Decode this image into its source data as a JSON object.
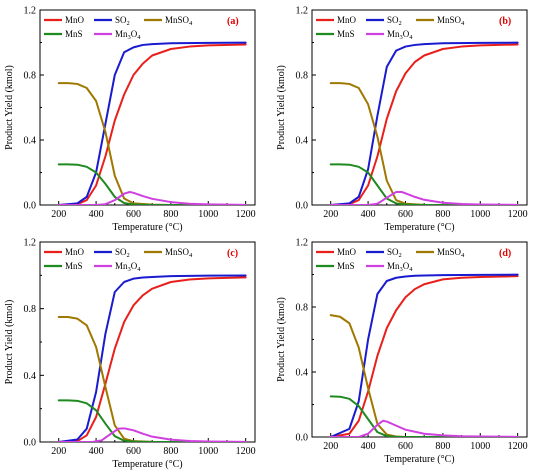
{
  "colors": {
    "MnO": "#e8201c",
    "SO2": "#1a1acf",
    "MnSO4": "#a07800",
    "MnS": "#1f8a1f",
    "Mn3O4": "#d040e0"
  },
  "chart_data": [
    {
      "type": "line",
      "panel_label": "(a)",
      "xlabel": "Temperature (°C)",
      "ylabel": "Product Yield (kmol)",
      "xlim": [
        100,
        1250
      ],
      "ylim": [
        0,
        1.2
      ],
      "xticks": [
        200,
        400,
        600,
        800,
        1000,
        1200
      ],
      "yticks": [
        0.0,
        0.4,
        0.8,
        1.2
      ],
      "legend": [
        {
          "key": "MnO",
          "label_main": "MnO",
          "label_sub": ""
        },
        {
          "key": "SO2",
          "label_main": "SO",
          "label_sub": "2"
        },
        {
          "key": "MnSO4",
          "label_main": "MnSO",
          "label_sub": "4"
        },
        {
          "key": "MnS",
          "label_main": "MnS",
          "label_sub": ""
        },
        {
          "key": "Mn3O4",
          "label_main": "Mn",
          "label_sub": "3",
          "label_tail": "O",
          "label_sub2": "4"
        }
      ],
      "series": [
        {
          "key": "MnO",
          "x": [
            200,
            300,
            350,
            400,
            450,
            500,
            550,
            600,
            650,
            700,
            800,
            900,
            1000,
            1200
          ],
          "y": [
            0,
            0.005,
            0.03,
            0.12,
            0.3,
            0.52,
            0.68,
            0.8,
            0.87,
            0.92,
            0.96,
            0.975,
            0.982,
            0.988
          ]
        },
        {
          "key": "SO2",
          "x": [
            200,
            300,
            350,
            400,
            450,
            500,
            550,
            600,
            650,
            700,
            800,
            1000,
            1200
          ],
          "y": [
            0,
            0.01,
            0.05,
            0.2,
            0.5,
            0.8,
            0.94,
            0.97,
            0.985,
            0.99,
            0.995,
            0.998,
            0.999
          ]
        },
        {
          "key": "MnSO4",
          "x": [
            200,
            250,
            300,
            350,
            400,
            450,
            500,
            550,
            600,
            700,
            800,
            1200
          ],
          "y": [
            0.75,
            0.75,
            0.745,
            0.72,
            0.64,
            0.45,
            0.18,
            0.04,
            0.01,
            0.002,
            0,
            0
          ]
        },
        {
          "key": "MnS",
          "x": [
            200,
            250,
            300,
            350,
            400,
            450,
            500,
            550,
            600,
            700,
            1200
          ],
          "y": [
            0.25,
            0.25,
            0.248,
            0.235,
            0.2,
            0.13,
            0.05,
            0.012,
            0.003,
            0,
            0
          ]
        },
        {
          "key": "Mn3O4",
          "x": [
            200,
            400,
            450,
            500,
            550,
            580,
            600,
            650,
            700,
            800,
            900,
            1000,
            1200
          ],
          "y": [
            0,
            0,
            0.005,
            0.03,
            0.07,
            0.08,
            0.075,
            0.055,
            0.038,
            0.018,
            0.008,
            0.004,
            0.001
          ]
        }
      ]
    },
    {
      "type": "line",
      "panel_label": "(b)",
      "xlabel": "Temperature (°C)",
      "ylabel": "Product Yield (kmol)",
      "xlim": [
        100,
        1250
      ],
      "ylim": [
        0,
        1.2
      ],
      "xticks": [
        200,
        400,
        600,
        800,
        1000,
        1200
      ],
      "yticks": [
        0.0,
        0.4,
        0.8,
        1.2
      ],
      "legend": [
        {
          "key": "MnO",
          "label_main": "MnO",
          "label_sub": ""
        },
        {
          "key": "SO2",
          "label_main": "SO",
          "label_sub": "2"
        },
        {
          "key": "MnSO4",
          "label_main": "MnSO",
          "label_sub": "4"
        },
        {
          "key": "MnS",
          "label_main": "MnS",
          "label_sub": ""
        },
        {
          "key": "Mn3O4",
          "label_main": "Mn",
          "label_sub": "3",
          "label_tail": "O",
          "label_sub2": "4"
        }
      ],
      "series": [
        {
          "key": "MnO",
          "x": [
            200,
            300,
            350,
            400,
            450,
            500,
            550,
            600,
            650,
            700,
            800,
            900,
            1000,
            1200
          ],
          "y": [
            0,
            0.005,
            0.03,
            0.12,
            0.3,
            0.53,
            0.7,
            0.81,
            0.88,
            0.92,
            0.96,
            0.975,
            0.982,
            0.988
          ]
        },
        {
          "key": "SO2",
          "x": [
            200,
            300,
            350,
            400,
            450,
            500,
            550,
            600,
            650,
            700,
            800,
            1000,
            1200
          ],
          "y": [
            0,
            0.01,
            0.05,
            0.22,
            0.55,
            0.85,
            0.95,
            0.975,
            0.985,
            0.99,
            0.995,
            0.998,
            0.999
          ]
        },
        {
          "key": "MnSO4",
          "x": [
            200,
            250,
            300,
            350,
            400,
            450,
            500,
            550,
            600,
            700,
            800,
            1200
          ],
          "y": [
            0.75,
            0.75,
            0.745,
            0.72,
            0.62,
            0.42,
            0.15,
            0.03,
            0.008,
            0.001,
            0,
            0
          ]
        },
        {
          "key": "MnS",
          "x": [
            200,
            250,
            300,
            350,
            400,
            450,
            500,
            550,
            600,
            700,
            1200
          ],
          "y": [
            0.25,
            0.25,
            0.248,
            0.235,
            0.2,
            0.12,
            0.04,
            0.01,
            0.002,
            0,
            0
          ]
        },
        {
          "key": "Mn3O4",
          "x": [
            200,
            400,
            450,
            500,
            550,
            580,
            600,
            650,
            700,
            800,
            900,
            1000,
            1200
          ],
          "y": [
            0,
            0,
            0.008,
            0.045,
            0.08,
            0.08,
            0.072,
            0.05,
            0.032,
            0.014,
            0.006,
            0.003,
            0.001
          ]
        }
      ]
    },
    {
      "type": "line",
      "panel_label": "(c)",
      "xlabel": "Temperature (°C)",
      "ylabel": "Product Yield (kmol)",
      "xlim": [
        100,
        1250
      ],
      "ylim": [
        0,
        1.2
      ],
      "xticks": [
        200,
        400,
        600,
        800,
        1000,
        1200
      ],
      "yticks": [
        0.0,
        0.4,
        0.8,
        1.2
      ],
      "legend": [
        {
          "key": "MnO",
          "label_main": "MnO",
          "label_sub": ""
        },
        {
          "key": "SO2",
          "label_main": "SO",
          "label_sub": "2"
        },
        {
          "key": "MnSO4",
          "label_main": "MnSO",
          "label_sub": "4"
        },
        {
          "key": "MnS",
          "label_main": "MnS",
          "label_sub": ""
        },
        {
          "key": "Mn3O4",
          "label_main": "Mn",
          "label_sub": "3",
          "label_tail": "O",
          "label_sub2": "4"
        }
      ],
      "series": [
        {
          "key": "MnO",
          "x": [
            200,
            300,
            350,
            400,
            450,
            500,
            550,
            600,
            650,
            700,
            800,
            900,
            1000,
            1200
          ],
          "y": [
            0,
            0.005,
            0.04,
            0.15,
            0.35,
            0.56,
            0.72,
            0.82,
            0.88,
            0.92,
            0.96,
            0.975,
            0.982,
            0.988
          ]
        },
        {
          "key": "SO2",
          "x": [
            200,
            300,
            350,
            400,
            450,
            500,
            550,
            600,
            650,
            700,
            800,
            1000,
            1200
          ],
          "y": [
            0,
            0.015,
            0.08,
            0.3,
            0.65,
            0.9,
            0.96,
            0.98,
            0.987,
            0.99,
            0.995,
            0.998,
            0.999
          ]
        },
        {
          "key": "MnSO4",
          "x": [
            200,
            250,
            300,
            350,
            400,
            450,
            500,
            550,
            600,
            700,
            800,
            1200
          ],
          "y": [
            0.75,
            0.75,
            0.74,
            0.7,
            0.57,
            0.33,
            0.1,
            0.02,
            0.005,
            0.001,
            0,
            0
          ]
        },
        {
          "key": "MnS",
          "x": [
            200,
            250,
            300,
            350,
            400,
            450,
            500,
            550,
            600,
            700,
            1200
          ],
          "y": [
            0.25,
            0.25,
            0.247,
            0.232,
            0.19,
            0.11,
            0.035,
            0.008,
            0.002,
            0,
            0
          ]
        },
        {
          "key": "Mn3O4",
          "x": [
            200,
            380,
            430,
            480,
            520,
            550,
            600,
            650,
            700,
            800,
            900,
            1000,
            1200
          ],
          "y": [
            0,
            0,
            0.01,
            0.05,
            0.08,
            0.082,
            0.07,
            0.05,
            0.032,
            0.014,
            0.006,
            0.003,
            0.001
          ]
        }
      ]
    },
    {
      "type": "line",
      "panel_label": "(d)",
      "xlabel": "Temperature (°C)",
      "ylabel": "Product Yield (kmol)",
      "xlim": [
        100,
        1250
      ],
      "ylim": [
        0,
        1.2
      ],
      "xticks": [
        200,
        400,
        600,
        800,
        1000,
        1200
      ],
      "yticks": [
        0.0,
        0.4,
        0.8,
        1.2
      ],
      "legend": [
        {
          "key": "MnO",
          "label_main": "MnO",
          "label_sub": ""
        },
        {
          "key": "SO2",
          "label_main": "SO",
          "label_sub": "2"
        },
        {
          "key": "MnSO4",
          "label_main": "MnSO",
          "label_sub": "4"
        },
        {
          "key": "MnS",
          "label_main": "MnS",
          "label_sub": ""
        },
        {
          "key": "Mn3O4",
          "label_main": "Mn",
          "label_sub": "3",
          "label_tail": "O",
          "label_sub2": "4"
        }
      ],
      "series": [
        {
          "key": "MnO",
          "x": [
            200,
            300,
            350,
            400,
            450,
            500,
            550,
            600,
            650,
            700,
            800,
            900,
            1000,
            1200
          ],
          "y": [
            0,
            0.02,
            0.1,
            0.28,
            0.5,
            0.67,
            0.78,
            0.86,
            0.91,
            0.94,
            0.97,
            0.98,
            0.985,
            0.99
          ]
        },
        {
          "key": "SO2",
          "x": [
            200,
            300,
            350,
            400,
            450,
            500,
            550,
            600,
            650,
            700,
            800,
            1000,
            1200
          ],
          "y": [
            0,
            0.05,
            0.22,
            0.6,
            0.88,
            0.96,
            0.98,
            0.988,
            0.992,
            0.994,
            0.996,
            0.998,
            0.999
          ]
        },
        {
          "key": "MnSO4",
          "x": [
            200,
            250,
            300,
            350,
            400,
            450,
            500,
            550,
            600,
            700,
            800,
            1200
          ],
          "y": [
            0.75,
            0.74,
            0.7,
            0.55,
            0.3,
            0.08,
            0.015,
            0.003,
            0,
            0,
            0,
            0
          ]
        },
        {
          "key": "MnS",
          "x": [
            200,
            250,
            300,
            350,
            400,
            450,
            500,
            550,
            600,
            700,
            1200
          ],
          "y": [
            0.25,
            0.248,
            0.235,
            0.19,
            0.11,
            0.03,
            0.006,
            0.001,
            0,
            0,
            0
          ]
        },
        {
          "key": "Mn3O4",
          "x": [
            200,
            350,
            400,
            450,
            480,
            500,
            550,
            600,
            700,
            800,
            900,
            1000,
            1200
          ],
          "y": [
            0,
            0,
            0.02,
            0.075,
            0.1,
            0.095,
            0.07,
            0.045,
            0.02,
            0.01,
            0.005,
            0.003,
            0.001
          ]
        }
      ]
    }
  ]
}
